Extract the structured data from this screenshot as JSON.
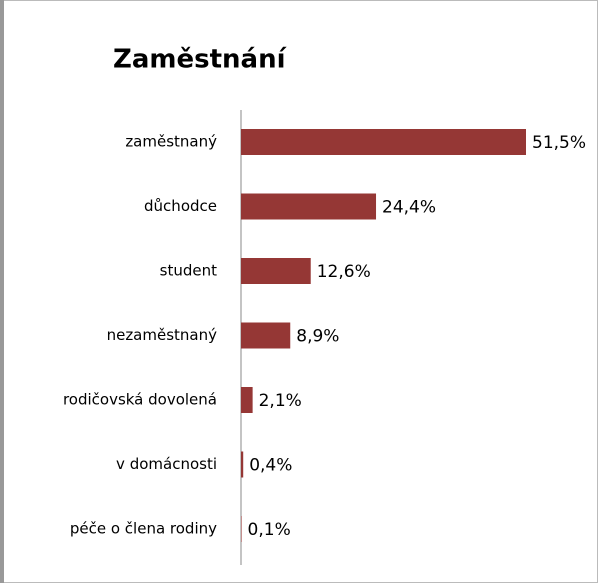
{
  "chart_data": {
    "type": "bar",
    "orientation": "horizontal",
    "title": "Zaměstnání",
    "categories": [
      "zaměstnaný",
      "důchodce",
      "student",
      "nezaměstnaný",
      "rodičovská dovolená",
      "v domácnosti",
      "péče o člena rodiny"
    ],
    "values": [
      51.5,
      24.4,
      12.6,
      8.9,
      2.1,
      0.4,
      0.1
    ],
    "value_labels": [
      "51,5%",
      "24,4%",
      "12,6%",
      "8,9%",
      "2,1%",
      "0,4%",
      "0,1%"
    ],
    "color": "#953735"
  }
}
